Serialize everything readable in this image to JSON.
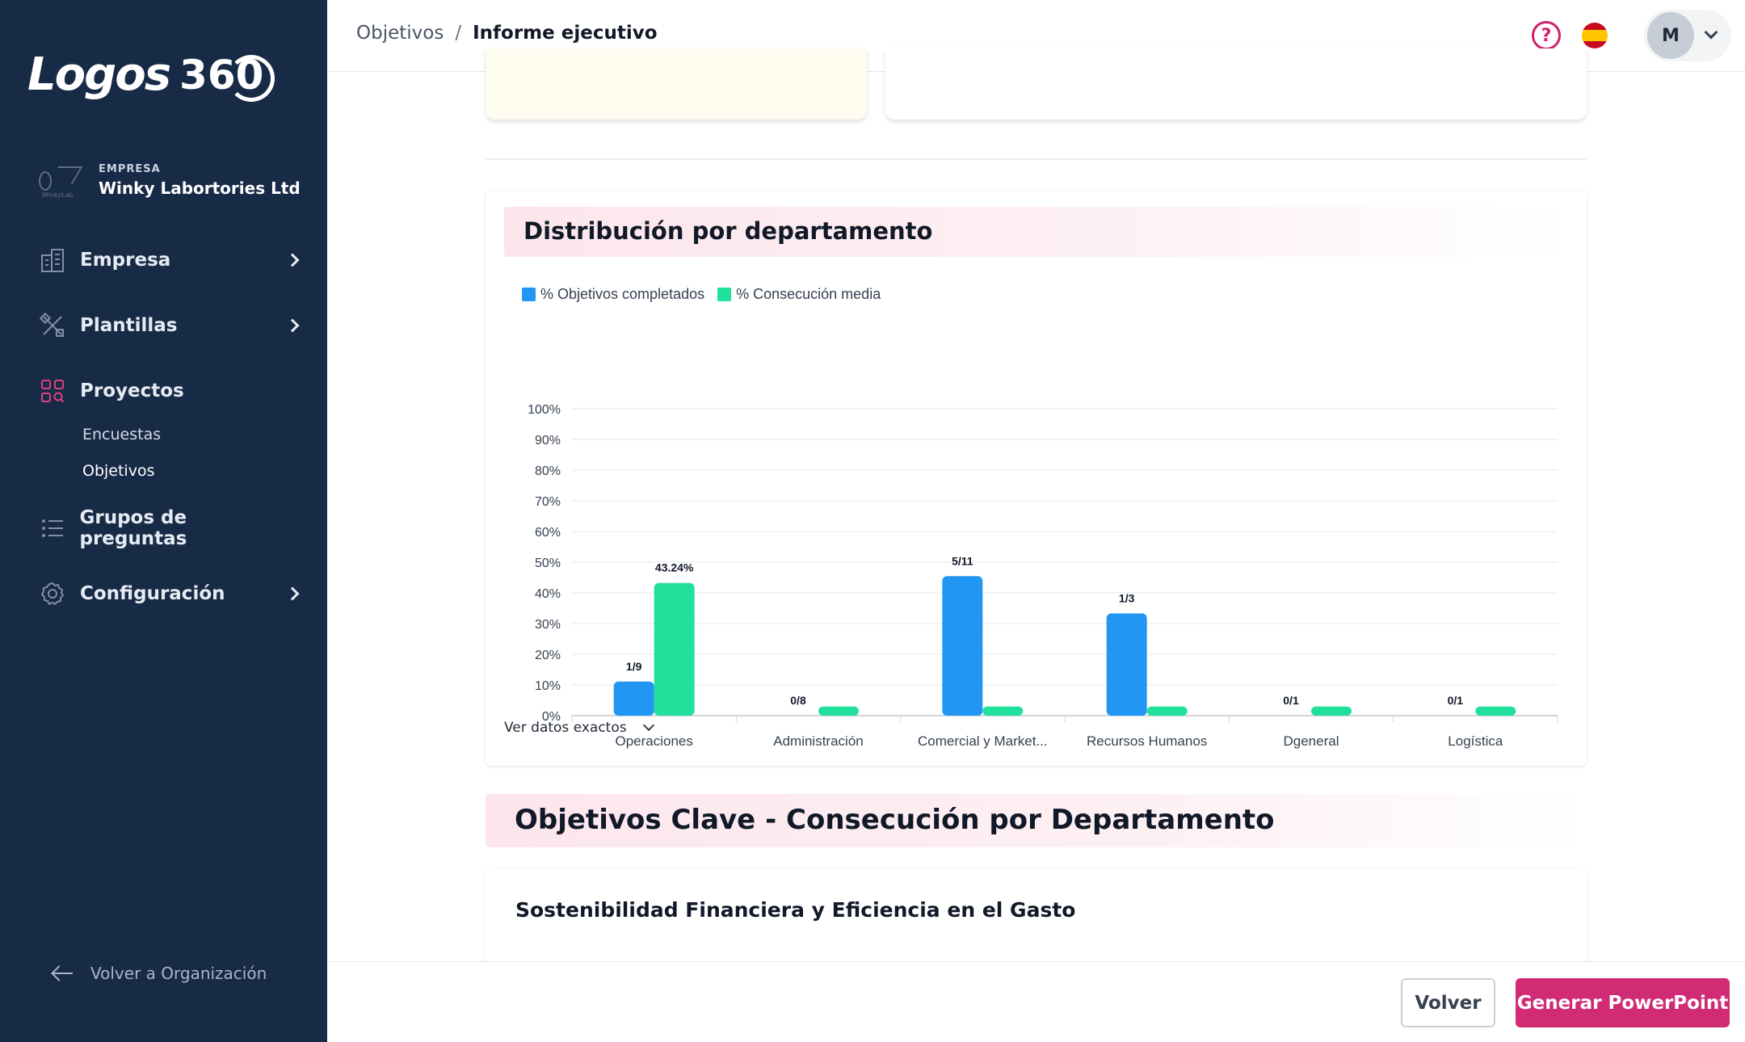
{
  "sidebar": {
    "logo_text": "Logos",
    "logo_number": "360",
    "company_label": "EMPRESA",
    "company_name": "Winky Labortories Ltd",
    "company_logo_caption": "WinkyLab",
    "items": [
      {
        "label": "Empresa",
        "icon": "building-icon",
        "has_chevron": true
      },
      {
        "label": "Plantillas",
        "icon": "tools-icon",
        "has_chevron": true
      },
      {
        "label": "Proyectos",
        "icon": "projects-grid-icon",
        "has_chevron": false
      },
      {
        "label": "Grupos de preguntas",
        "icon": "list-icon",
        "has_chevron": false
      },
      {
        "label": "Configuración",
        "icon": "gear-icon",
        "has_chevron": true
      }
    ],
    "sub_items": [
      {
        "label": "Encuestas",
        "active": false
      },
      {
        "label": "Objetivos",
        "active": true
      }
    ],
    "back_label": "Volver a Organización"
  },
  "header": {
    "breadcrumb_parent": "Objetivos",
    "breadcrumb_separator": "/",
    "breadcrumb_current": "Informe ejecutivo",
    "help_symbol": "?",
    "language_flag": "es",
    "avatar_initial": "M"
  },
  "distribution": {
    "title": "Distribución por departamento",
    "toggle_label": "Ver datos exactos"
  },
  "chart_data": {
    "type": "bar",
    "title": "",
    "categories": [
      "Operaciones",
      "Administración",
      "Comercial y Market...",
      "Recursos Humanos",
      "Dgeneral",
      "Logística"
    ],
    "series": [
      {
        "name": "% Objetivos completados",
        "color": "#2196f3",
        "values": [
          11.11,
          0,
          45.45,
          33.33,
          0,
          0
        ],
        "labels": [
          "1/9",
          "0/8",
          "5/11",
          "1/3",
          "0/1",
          "0/1"
        ]
      },
      {
        "name": "% Consecución media",
        "color": "#21e09b",
        "values": [
          43.24,
          3,
          3,
          3,
          3,
          3
        ],
        "labels": [
          "43.24%",
          "",
          "",
          "",
          "",
          ""
        ]
      }
    ],
    "y_ticks": [
      "0%",
      "10%",
      "20%",
      "30%",
      "40%",
      "50%",
      "60%",
      "70%",
      "80%",
      "90%",
      "100%"
    ],
    "ylim": [
      0,
      100
    ],
    "grid": true,
    "legend_position": "top-left"
  },
  "key_objectives": {
    "title": "Objetivos Clave - Consecución por Departamento",
    "first_objective": "Sostenibilidad Financiera y Eficiencia en el Gasto"
  },
  "footer": {
    "back_button": "Volver",
    "ppt_button": "Generar PowerPoint"
  },
  "colors": {
    "sidebar_bg": "#172a46",
    "accent": "#d02b74",
    "bar_completed": "#2196f3",
    "bar_average": "#21e09b"
  }
}
